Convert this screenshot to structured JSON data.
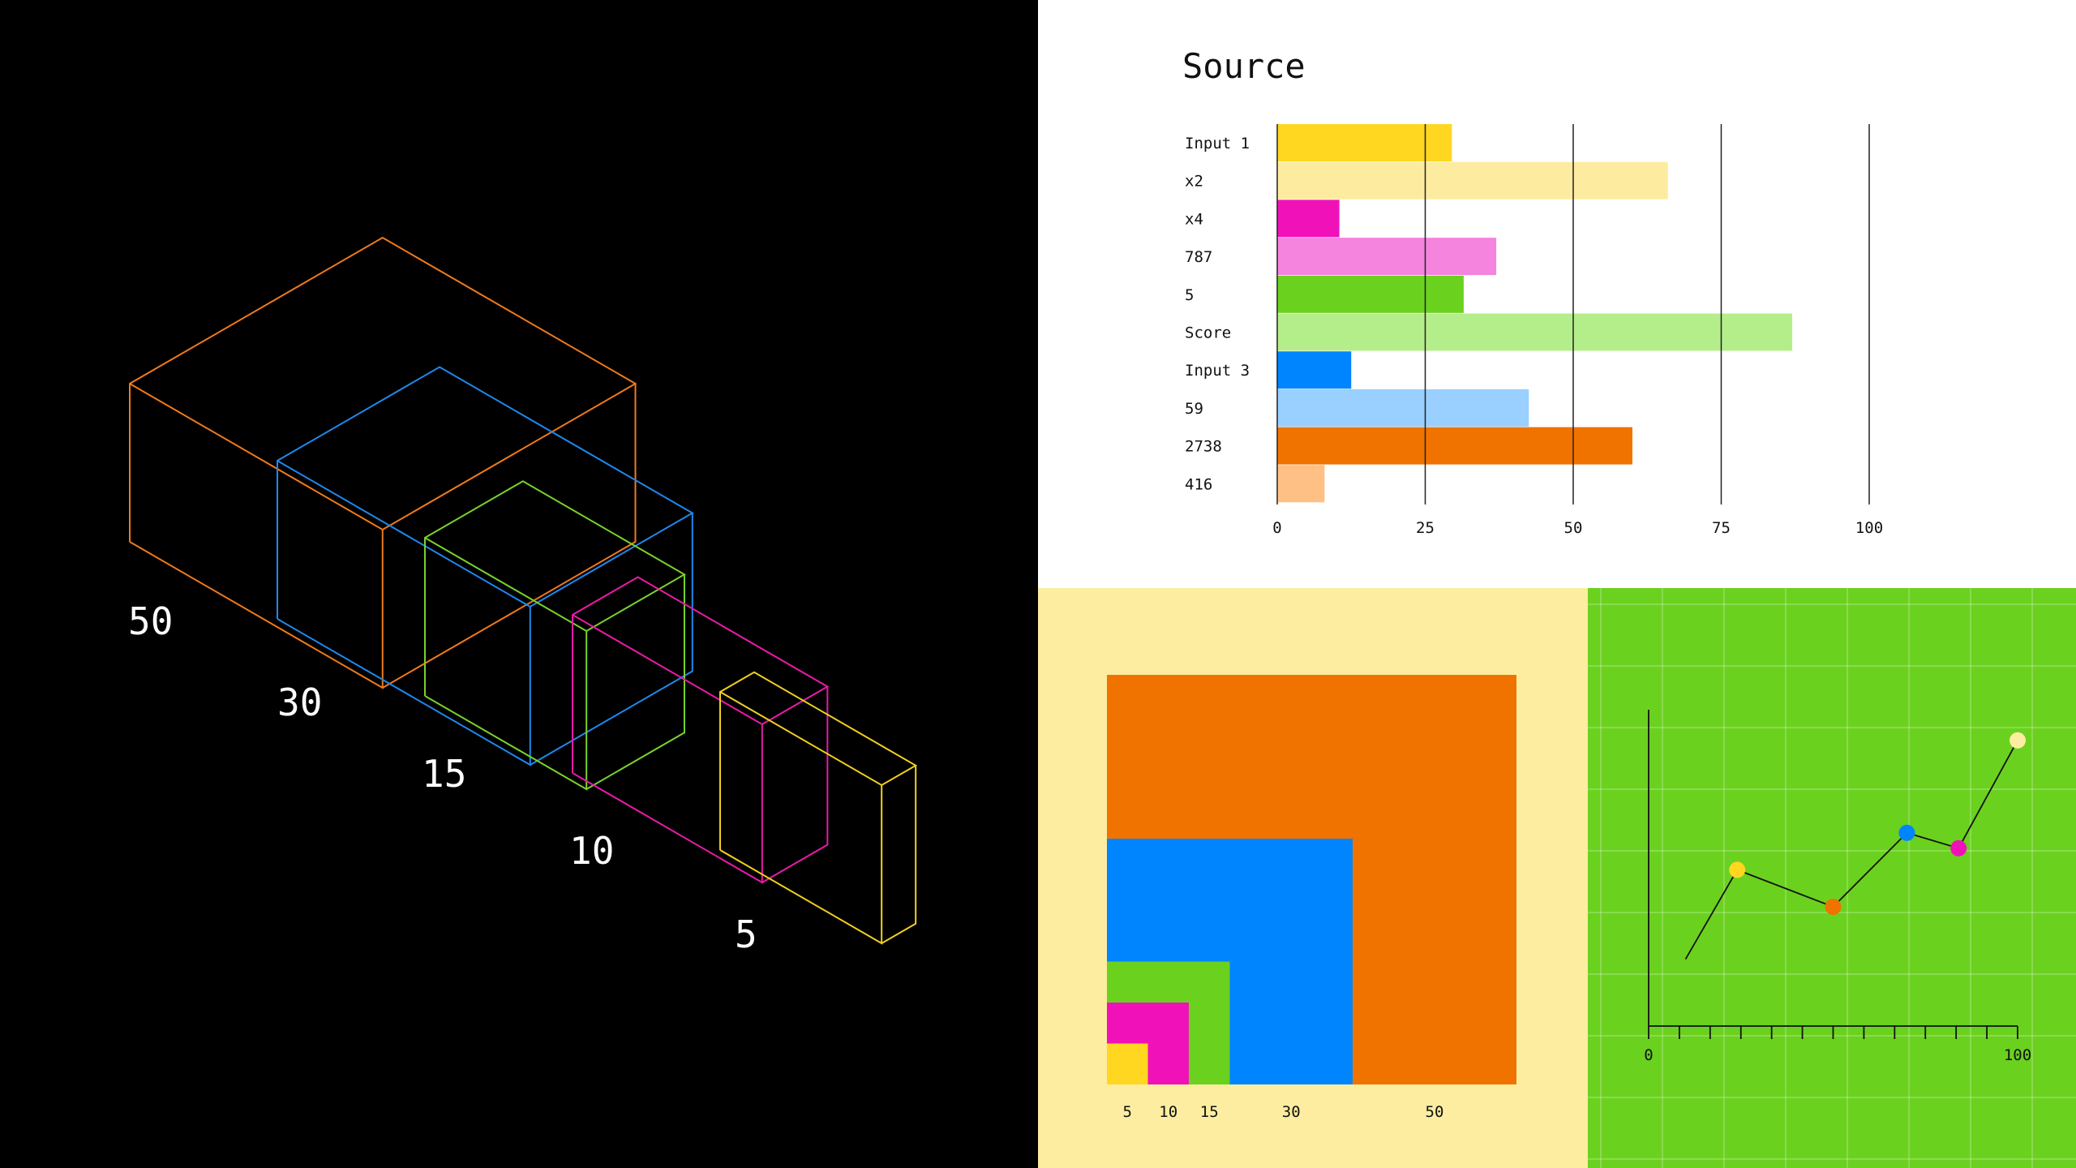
{
  "colors": {
    "orange": "#f07300",
    "blue": "#0085ff",
    "green": "#6bd11f",
    "magenta": "#f012b8",
    "yellow": "#ffd620",
    "light_yellow": "#fdeda0",
    "black": "#000000",
    "white": "#ffffff"
  },
  "chart_data": [
    {
      "type": "isometric-boxes",
      "values": [
        50,
        30,
        15,
        10,
        5
      ],
      "labels": [
        "50",
        "30",
        "15",
        "10",
        "5"
      ],
      "colors": [
        "#f07a1a",
        "#1e88f0",
        "#7ad12a",
        "#e81aa8",
        "#f0d020"
      ]
    },
    {
      "type": "bar",
      "title": "Source",
      "orientation": "horizontal",
      "categories": [
        "Input 1",
        "x2",
        "x4",
        "787",
        "5",
        "Score",
        "Input 3",
        "59",
        "2738",
        "416"
      ],
      "values": [
        29.5,
        66,
        10.5,
        37,
        31.5,
        87,
        12.5,
        42.5,
        60,
        8
      ],
      "bar_colors": [
        "#ffd620",
        "#fdeca0",
        "#f012b8",
        "#f584de",
        "#6bd11f",
        "#b4ee8a",
        "#0085ff",
        "#99d0ff",
        "#f07300",
        "#ffc085"
      ],
      "xlim": [
        0,
        100
      ],
      "xticks": [
        "0",
        "25",
        "50",
        "75",
        "100"
      ],
      "grid": true
    },
    {
      "type": "nested-squares",
      "values": [
        50,
        30,
        15,
        10,
        5
      ],
      "labels": [
        "5",
        "10",
        "15",
        "30",
        "50"
      ],
      "colors": [
        "#f07300",
        "#0085ff",
        "#6bd11f",
        "#f012b8",
        "#ffd620"
      ]
    },
    {
      "type": "line",
      "x": [
        10,
        24,
        50,
        70,
        84,
        100
      ],
      "y": [
        13,
        42,
        30,
        54,
        49,
        84
      ],
      "point_colors": [
        null,
        "#ffd620",
        "#f07300",
        "#0085ff",
        "#f012b8",
        "#fdeda0"
      ],
      "xlim": [
        0,
        100
      ],
      "ylim": [
        0,
        100
      ],
      "xticks": [
        "0",
        "100"
      ],
      "grid": true
    }
  ]
}
